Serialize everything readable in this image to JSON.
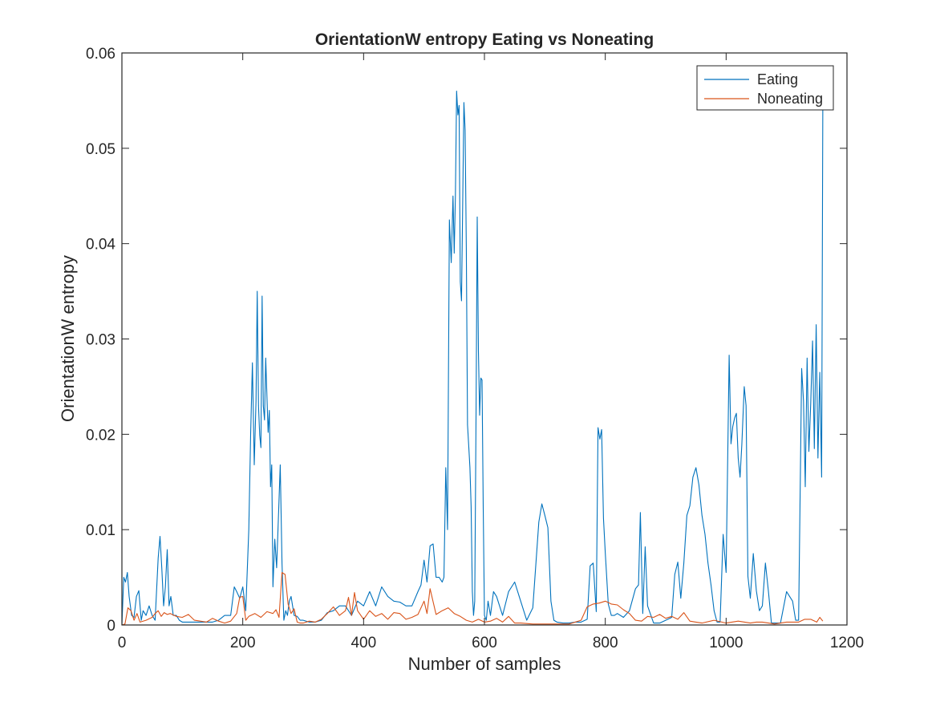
{
  "chart_data": {
    "type": "line",
    "title": "OrientationW entropy Eating vs Noneating",
    "xlabel": "Number of samples",
    "ylabel": "OrientationW entropy",
    "xlim": [
      0,
      1200
    ],
    "ylim": [
      0,
      0.06
    ],
    "x_ticks": [
      0,
      200,
      400,
      600,
      800,
      1000,
      1200
    ],
    "x_tick_labels": [
      "0",
      "200",
      "400",
      "600",
      "800",
      "1000",
      "1200"
    ],
    "y_ticks": [
      0,
      0.01,
      0.02,
      0.03,
      0.04,
      0.05,
      0.06
    ],
    "y_tick_labels": [
      "0",
      "0.01",
      "0.02",
      "0.03",
      "0.04",
      "0.05",
      "0.06"
    ],
    "grid": false,
    "legend": "top-right",
    "series": [
      {
        "name": "Eating",
        "color": "#0072BD",
        "x": [
          0,
          3,
          6,
          9,
          12,
          16,
          20,
          24,
          28,
          32,
          35,
          40,
          45,
          50,
          55,
          60,
          63,
          66,
          69,
          72,
          75,
          78,
          81,
          85,
          90,
          95,
          100,
          110,
          120,
          130,
          140,
          150,
          160,
          170,
          180,
          186,
          190,
          195,
          200,
          205,
          210,
          213,
          216,
          219,
          222,
          224,
          226,
          228,
          230,
          232,
          234,
          236,
          238,
          240,
          242,
          244,
          246,
          248,
          250,
          253,
          256,
          259,
          262,
          265,
          268,
          271,
          274,
          277,
          280,
          285,
          290,
          295,
          300,
          310,
          320,
          330,
          340,
          350,
          360,
          370,
          380,
          390,
          400,
          410,
          420,
          430,
          440,
          450,
          460,
          470,
          480,
          490,
          495,
          500,
          505,
          510,
          515,
          520,
          525,
          530,
          533,
          536,
          539,
          542,
          545,
          548,
          550,
          552,
          554,
          556,
          558,
          560,
          562,
          564,
          566,
          568,
          570,
          572,
          574,
          576,
          578,
          580,
          582,
          584,
          586,
          588,
          590,
          592,
          594,
          596,
          598,
          600,
          603,
          606,
          610,
          615,
          620,
          630,
          640,
          650,
          660,
          670,
          680,
          690,
          695,
          700,
          705,
          710,
          715,
          720,
          730,
          740,
          750,
          760,
          770,
          775,
          780,
          785,
          788,
          791,
          794,
          797,
          800,
          805,
          810,
          815,
          820,
          830,
          840,
          850,
          855,
          858,
          862,
          866,
          870,
          880,
          890,
          900,
          910,
          915,
          920,
          925,
          930,
          935,
          940,
          945,
          950,
          955,
          960,
          965,
          970,
          975,
          980,
          985,
          990,
          995,
          1000,
          1005,
          1008,
          1011,
          1014,
          1017,
          1020,
          1023,
          1026,
          1030,
          1033,
          1036,
          1040,
          1045,
          1050,
          1055,
          1060,
          1065,
          1070,
          1075,
          1080,
          1090,
          1100,
          1110,
          1115,
          1120,
          1125,
          1128,
          1131,
          1134,
          1137,
          1140,
          1143,
          1146,
          1149,
          1152,
          1155,
          1158,
          1160
        ],
        "values": [
          0.0,
          0.005,
          0.0045,
          0.0055,
          0.003,
          0.001,
          0.0008,
          0.003,
          0.0036,
          0.0005,
          0.0015,
          0.001,
          0.002,
          0.001,
          0.0005,
          0.007,
          0.0093,
          0.006,
          0.002,
          0.004,
          0.0079,
          0.002,
          0.003,
          0.001,
          0.001,
          0.0005,
          0.0003,
          0.0003,
          0.0003,
          0.0003,
          0.0003,
          0.0003,
          0.0005,
          0.001,
          0.001,
          0.004,
          0.0035,
          0.0028,
          0.004,
          0.0015,
          0.01,
          0.02,
          0.0275,
          0.0168,
          0.0235,
          0.035,
          0.023,
          0.0199,
          0.0186,
          0.0345,
          0.023,
          0.0215,
          0.028,
          0.024,
          0.0202,
          0.0225,
          0.0145,
          0.0168,
          0.004,
          0.009,
          0.006,
          0.0112,
          0.0168,
          0.0065,
          0.0005,
          0.0015,
          0.001,
          0.0025,
          0.003,
          0.001,
          0.0009,
          0.0005,
          0.0005,
          0.0003,
          0.0003,
          0.0005,
          0.0013,
          0.0015,
          0.002,
          0.002,
          0.001,
          0.0025,
          0.002,
          0.0035,
          0.002,
          0.004,
          0.003,
          0.0025,
          0.0024,
          0.002,
          0.002,
          0.0035,
          0.0042,
          0.0068,
          0.0045,
          0.0083,
          0.0085,
          0.005,
          0.005,
          0.0045,
          0.005,
          0.0165,
          0.01,
          0.0425,
          0.038,
          0.045,
          0.039,
          0.045,
          0.056,
          0.0535,
          0.0545,
          0.036,
          0.034,
          0.0443,
          0.0548,
          0.0519,
          0.0395,
          0.021,
          0.0188,
          0.0165,
          0.0124,
          0.0035,
          0.001,
          0.0025,
          0.0217,
          0.0428,
          0.0287,
          0.022,
          0.0259,
          0.0257,
          0.0122,
          0.001,
          0.0005,
          0.0025,
          0.001,
          0.0035,
          0.003,
          0.001,
          0.0035,
          0.0045,
          0.0025,
          0.0005,
          0.0018,
          0.0108,
          0.0127,
          0.0115,
          0.0102,
          0.0025,
          0.0005,
          0.0003,
          0.0002,
          0.0002,
          0.0003,
          0.0003,
          0.0006,
          0.0062,
          0.0065,
          0.0014,
          0.0207,
          0.0195,
          0.0205,
          0.0112,
          0.0075,
          0.0022,
          0.001,
          0.001,
          0.0012,
          0.0008,
          0.0015,
          0.0038,
          0.0042,
          0.0118,
          0.0012,
          0.0082,
          0.002,
          0.0002,
          0.0002,
          0.0005,
          0.0008,
          0.0053,
          0.0066,
          0.0028,
          0.0065,
          0.0115,
          0.0125,
          0.0155,
          0.0165,
          0.0147,
          0.0115,
          0.0095,
          0.0065,
          0.0042,
          0.0015,
          0.0003,
          0.0003,
          0.0095,
          0.0055,
          0.0283,
          0.019,
          0.0208,
          0.0217,
          0.0222,
          0.0175,
          0.0155,
          0.0189,
          0.025,
          0.023,
          0.0051,
          0.0028,
          0.0075,
          0.0036,
          0.0015,
          0.002,
          0.0065,
          0.0035,
          0.0002,
          0.0002,
          0.0002,
          0.0035,
          0.0025,
          0.0005,
          0.0005,
          0.0269,
          0.0235,
          0.0145,
          0.028,
          0.0182,
          0.0232,
          0.0298,
          0.0185,
          0.0315,
          0.0175,
          0.0265,
          0.0155,
          0.055
        ]
      },
      {
        "name": "Noneating",
        "color": "#D95319",
        "x": [
          0,
          5,
          10,
          15,
          20,
          25,
          30,
          40,
          50,
          55,
          60,
          65,
          70,
          75,
          80,
          90,
          100,
          110,
          120,
          130,
          140,
          150,
          160,
          170,
          180,
          190,
          195,
          200,
          205,
          210,
          220,
          230,
          240,
          250,
          255,
          260,
          265,
          270,
          275,
          280,
          285,
          290,
          295,
          300,
          310,
          320,
          330,
          340,
          350,
          360,
          370,
          375,
          380,
          385,
          390,
          400,
          410,
          420,
          430,
          440,
          450,
          460,
          470,
          480,
          490,
          500,
          505,
          510,
          520,
          530,
          540,
          550,
          560,
          570,
          580,
          590,
          600,
          610,
          620,
          630,
          640,
          650,
          660,
          680,
          700,
          720,
          740,
          760,
          770,
          780,
          790,
          800,
          810,
          820,
          830,
          840,
          850,
          860,
          870,
          880,
          890,
          900,
          910,
          920,
          930,
          940,
          950,
          960,
          980,
          1000,
          1020,
          1040,
          1050,
          1060,
          1070,
          1080,
          1100,
          1120,
          1130,
          1140,
          1150,
          1155,
          1160
        ],
        "values": [
          0.0,
          0.0001,
          0.0018,
          0.0015,
          0.0005,
          0.0012,
          0.0003,
          0.0005,
          0.0008,
          0.0012,
          0.0015,
          0.0009,
          0.0013,
          0.0011,
          0.0012,
          0.0009,
          0.0008,
          0.0011,
          0.0005,
          0.0004,
          0.0003,
          0.0007,
          0.0004,
          0.0002,
          0.0004,
          0.0012,
          0.0029,
          0.003,
          0.0005,
          0.0009,
          0.0012,
          0.0008,
          0.0014,
          0.0012,
          0.0016,
          0.0008,
          0.0055,
          0.0053,
          0.0022,
          0.0012,
          0.0017,
          0.0003,
          0.0002,
          0.0002,
          0.0004,
          0.0003,
          0.0006,
          0.0012,
          0.0019,
          0.001,
          0.0015,
          0.0029,
          0.001,
          0.0034,
          0.0015,
          0.0006,
          0.0015,
          0.0009,
          0.0012,
          0.0006,
          0.0013,
          0.0012,
          0.0006,
          0.0008,
          0.0011,
          0.0025,
          0.0012,
          0.0038,
          0.0011,
          0.0015,
          0.0018,
          0.0012,
          0.0009,
          0.0005,
          0.0003,
          0.0006,
          0.0003,
          0.0004,
          0.0007,
          0.0003,
          0.0009,
          0.0002,
          0.0002,
          0.0001,
          0.0001,
          0.0001,
          0.0001,
          0.0005,
          0.0019,
          0.0022,
          0.0023,
          0.0025,
          0.0022,
          0.0021,
          0.0016,
          0.0012,
          0.0005,
          0.0004,
          0.0009,
          0.0008,
          0.0011,
          0.0007,
          0.0009,
          0.0006,
          0.0013,
          0.0004,
          0.0003,
          0.0002,
          0.0005,
          0.0002,
          0.0004,
          0.0002,
          0.0003,
          0.0003,
          0.0002,
          0.0001,
          0.0003,
          0.0003,
          0.0006,
          0.0006,
          0.0003,
          0.0008,
          0.0004
        ]
      }
    ]
  }
}
